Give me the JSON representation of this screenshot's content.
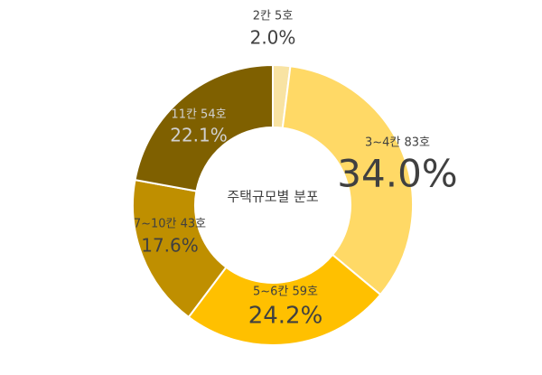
{
  "chart_data": {
    "type": "donut",
    "title": "주택규모별 분포",
    "categories": [
      "2칸 5호",
      "3~4칸 83호",
      "5~6칸 59호",
      "7~10칸 43호",
      "11칸 54호"
    ],
    "values": [
      2.0,
      34.0,
      24.2,
      17.6,
      22.1
    ],
    "value_labels": [
      "2.0%",
      "34.0%",
      "24.2%",
      "17.6%",
      "22.1%"
    ],
    "colors": [
      "#f8e3a3",
      "#ffd966",
      "#ffc000",
      "#bf8f00",
      "#7f6000"
    ]
  }
}
